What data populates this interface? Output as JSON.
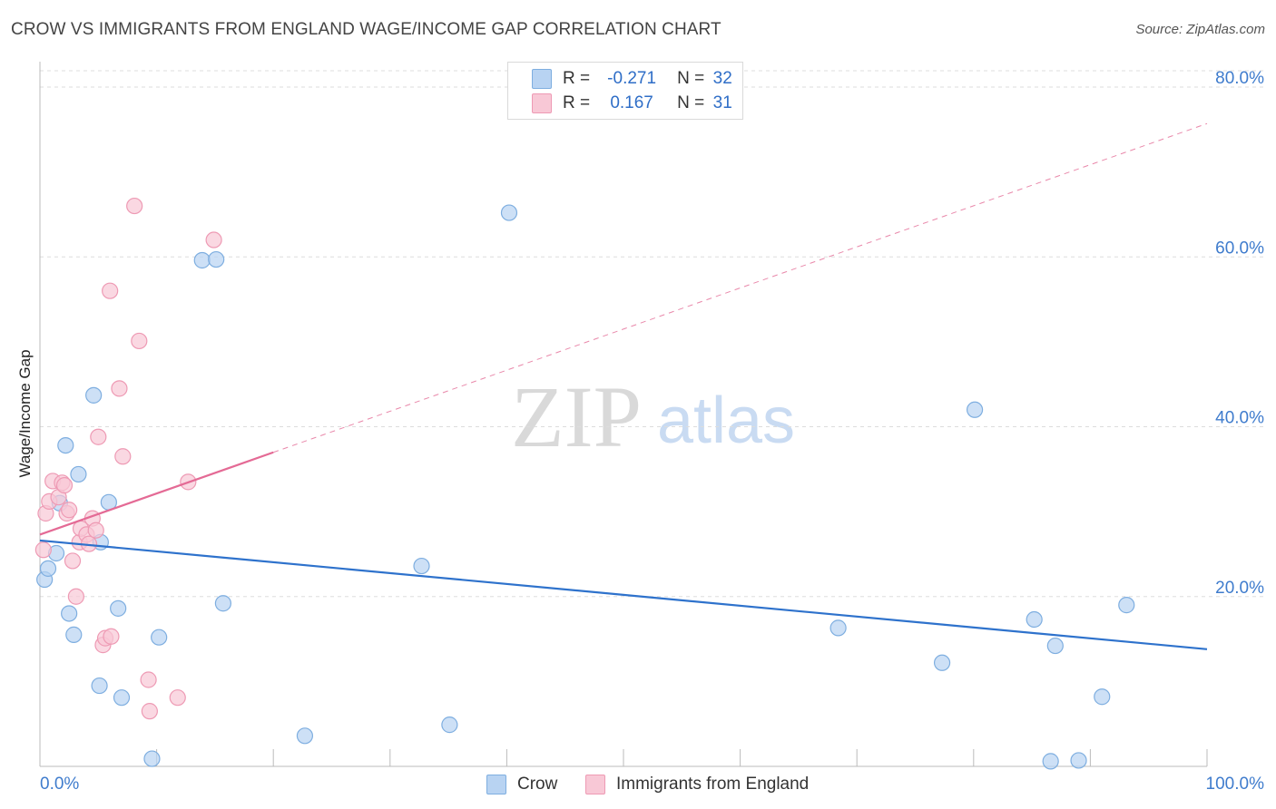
{
  "header": {
    "title": "CROW VS IMMIGRANTS FROM ENGLAND WAGE/INCOME GAP CORRELATION CHART",
    "source": "Source: ZipAtlas.com"
  },
  "watermark": {
    "zip": "ZIP",
    "atlas": "atlas"
  },
  "colors": {
    "crow_fill": "#b8d3f2",
    "crow_stroke": "#7eaee0",
    "crow_line": "#2e72cc",
    "eng_fill": "#f8c8d6",
    "eng_stroke": "#ee9ab4",
    "eng_line": "#e46a95",
    "axis_text": "#3f7ccd",
    "grid": "#dddddd"
  },
  "legend_top": {
    "rows": [
      {
        "r_label": "R =",
        "r_value": "-0.271",
        "n_label": "N =",
        "n_value": "32"
      },
      {
        "r_label": "R =",
        "r_value": "0.167",
        "n_label": "N =",
        "n_value": "31"
      }
    ]
  },
  "legend_bottom": {
    "crow": "Crow",
    "england": "Immigrants from England"
  },
  "chart_data": {
    "type": "scatter",
    "title": "CROW VS IMMIGRANTS FROM ENGLAND WAGE/INCOME GAP CORRELATION CHART",
    "xlabel": "",
    "ylabel": "Wage/Income Gap",
    "xlim": [
      0,
      100
    ],
    "ylim": [
      0,
      80
    ],
    "x_tick_labels": [
      "0.0%",
      "100.0%"
    ],
    "y_ticks": [
      20,
      40,
      60,
      80
    ],
    "y_tick_labels": [
      "20.0%",
      "40.0%",
      "60.0%",
      "80.0%"
    ],
    "x_minor_ticks": [
      0,
      10,
      20,
      30,
      40,
      50,
      60,
      70,
      80,
      90,
      100
    ],
    "series": [
      {
        "name": "Crow",
        "r": -0.271,
        "n": 32,
        "points": [
          [
            0.4,
            22.0
          ],
          [
            0.7,
            23.3
          ],
          [
            1.4,
            25.1
          ],
          [
            1.7,
            31.0
          ],
          [
            2.2,
            37.8
          ],
          [
            2.5,
            18.0
          ],
          [
            2.9,
            15.5
          ],
          [
            3.3,
            34.4
          ],
          [
            4.6,
            43.7
          ],
          [
            5.1,
            9.5
          ],
          [
            5.2,
            26.4
          ],
          [
            5.9,
            31.1
          ],
          [
            6.7,
            18.6
          ],
          [
            7.0,
            8.1
          ],
          [
            9.6,
            0.9
          ],
          [
            10.2,
            15.2
          ],
          [
            13.9,
            59.6
          ],
          [
            15.1,
            59.7
          ],
          [
            15.7,
            19.2
          ],
          [
            22.7,
            3.6
          ],
          [
            32.7,
            23.6
          ],
          [
            35.1,
            4.9
          ],
          [
            40.2,
            65.2
          ],
          [
            68.4,
            16.3
          ],
          [
            77.3,
            12.2
          ],
          [
            80.1,
            42.0
          ],
          [
            85.2,
            17.3
          ],
          [
            86.6,
            0.6
          ],
          [
            87.0,
            14.2
          ],
          [
            89.0,
            0.7
          ],
          [
            91.0,
            8.2
          ],
          [
            93.1,
            19.0
          ]
        ],
        "trend": {
          "x0": 0,
          "y0": 26.6,
          "x1": 100,
          "y1": 13.8,
          "dashed_from_x": null
        }
      },
      {
        "name": "Immigrants from England",
        "r": 0.167,
        "n": 31,
        "points": [
          [
            0.3,
            25.5
          ],
          [
            0.5,
            29.8
          ],
          [
            0.8,
            31.2
          ],
          [
            1.1,
            33.6
          ],
          [
            1.6,
            31.7
          ],
          [
            1.9,
            33.4
          ],
          [
            2.1,
            33.1
          ],
          [
            2.3,
            29.8
          ],
          [
            2.5,
            30.2
          ],
          [
            2.8,
            24.2
          ],
          [
            3.1,
            20.0
          ],
          [
            3.4,
            26.4
          ],
          [
            3.5,
            28.0
          ],
          [
            4.0,
            27.3
          ],
          [
            4.2,
            26.2
          ],
          [
            4.5,
            29.2
          ],
          [
            4.8,
            27.8
          ],
          [
            5.0,
            38.8
          ],
          [
            5.4,
            14.3
          ],
          [
            5.6,
            15.1
          ],
          [
            6.1,
            15.3
          ],
          [
            6.8,
            44.5
          ],
          [
            7.1,
            36.5
          ],
          [
            8.1,
            66.0
          ],
          [
            8.5,
            50.1
          ],
          [
            9.3,
            10.2
          ],
          [
            9.4,
            6.5
          ],
          [
            11.8,
            8.1
          ],
          [
            12.7,
            33.5
          ],
          [
            14.9,
            62.0
          ],
          [
            6.0,
            56.0
          ]
        ],
        "trend": {
          "x0": 0,
          "y0": 27.3,
          "x1": 100,
          "y1": 75.7,
          "solid_until_x": 20.0
        }
      }
    ]
  }
}
